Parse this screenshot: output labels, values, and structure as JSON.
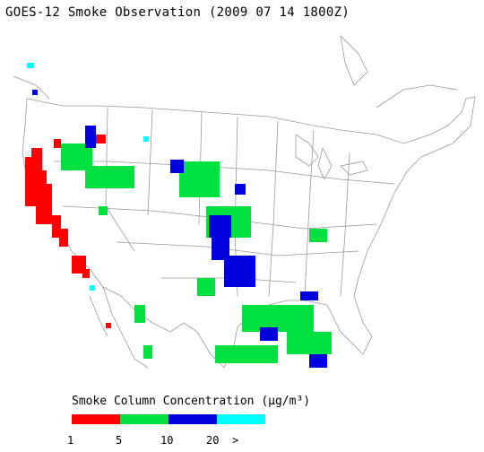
{
  "title": "GOES-12 Smoke Observation (2009 07 14  1800Z)",
  "legend": {
    "title": "Smoke Column Concentration (μg/m³)",
    "colors": [
      "#ff0000",
      "#00e040",
      "#0000dd",
      "#00ffff"
    ],
    "ticks": [
      "1",
      "5",
      "10",
      "20",
      ">"
    ]
  }
}
